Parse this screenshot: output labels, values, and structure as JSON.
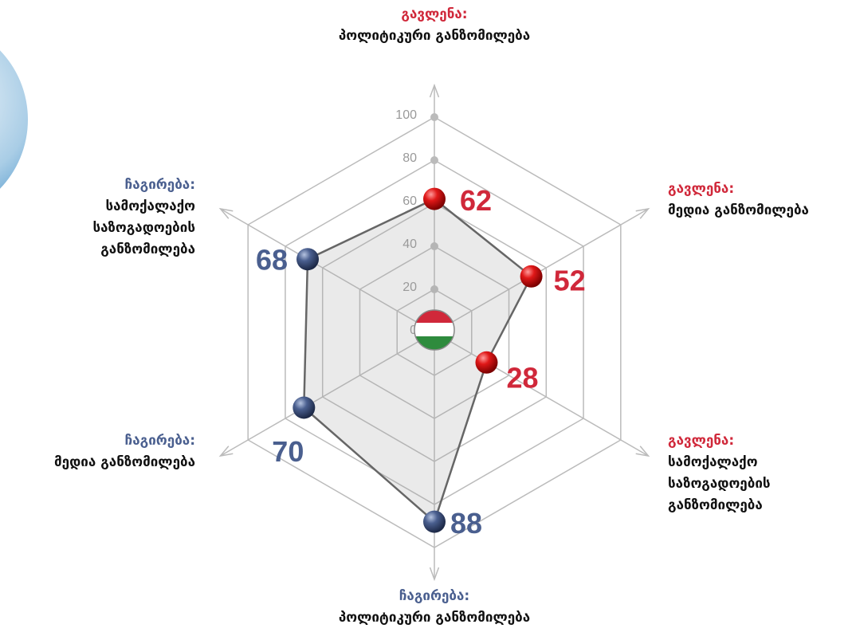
{
  "chart_data": {
    "type": "radar",
    "axes": [
      {
        "group": "გავლენა:",
        "lines": [
          "პოლიტიკური განზომილება"
        ],
        "color": "#d0283a"
      },
      {
        "group": "გავლენა:",
        "lines": [
          "მედია განზომილება"
        ],
        "color": "#d0283a"
      },
      {
        "group": "გავლენა:",
        "lines": [
          "სამოქალაქო",
          "საზოგადოების",
          "განზომილება"
        ],
        "color": "#d0283a"
      },
      {
        "group": "ჩაგირება:",
        "lines": [
          "პოლიტიკური განზომილება"
        ],
        "color": "#4a5f8f"
      },
      {
        "group": "ჩაგირება:",
        "lines": [
          "მედია განზომილება"
        ],
        "color": "#4a5f8f"
      },
      {
        "group": "ჩაგირება:",
        "lines": [
          "სამოქალაქო",
          "საზოგადოების",
          "განზომილება"
        ],
        "color": "#4a5f8f"
      }
    ],
    "values": [
      62,
      52,
      28,
      88,
      70,
      68
    ],
    "rlim": [
      0,
      100
    ],
    "rticks": [
      0,
      20,
      40,
      60,
      80,
      100
    ],
    "grid": true
  }
}
